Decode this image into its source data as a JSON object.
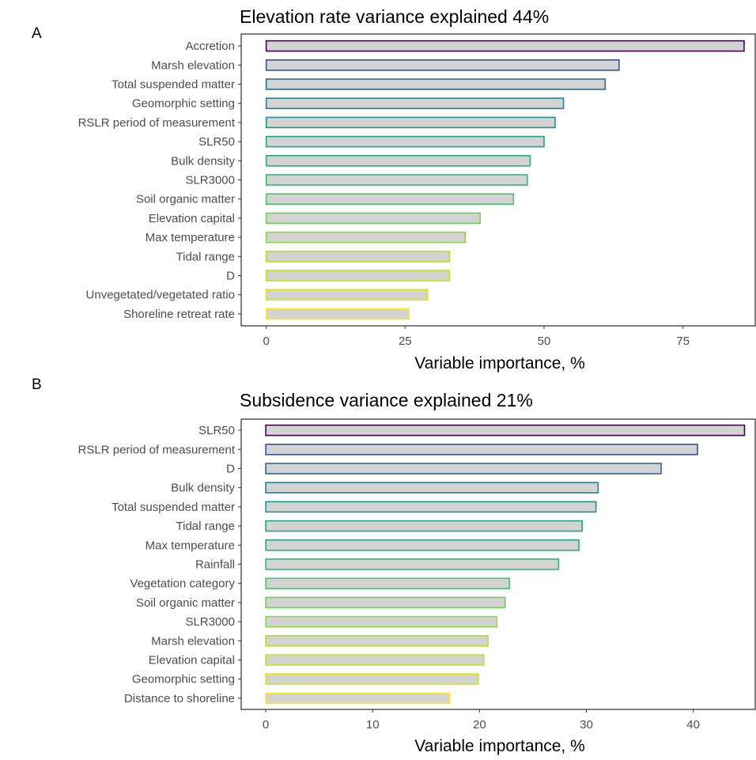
{
  "chart_data": [
    {
      "type": "bar",
      "orientation": "horizontal",
      "panel_label": "A",
      "title": "Elevation rate variance explained 44%",
      "xlabel": "Variable importance, %",
      "ylabel": "",
      "xlim": [
        -4.5,
        88
      ],
      "xticks": [
        0,
        25,
        50,
        75
      ],
      "tick_labels": [
        "0",
        "25",
        "50",
        "75"
      ],
      "grid": false,
      "legend": "none",
      "categories": [
        "Accretion",
        "Marsh elevation",
        "Total suspended matter",
        "Geomorphic setting",
        "RSLR period of measurement",
        "SLR50",
        "Bulk density",
        "SLR3000",
        "Soil organic matter",
        "Elevation capital",
        "Max temperature",
        "Tidal range",
        "D",
        "Unvegetated/vegetated ratio",
        "Shoreline retreat rate"
      ],
      "values": [
        86,
        63.5,
        61,
        53.5,
        52,
        50,
        47.5,
        47,
        44.5,
        38.5,
        35.8,
        33,
        33,
        29,
        25.7
      ],
      "colors": [
        "#440154",
        "#3b528b",
        "#31688e",
        "#2c7f8e",
        "#21918c",
        "#20a486",
        "#26ad81",
        "#35b779",
        "#4ec36b",
        "#6ece58",
        "#8fd744",
        "#b5de2b",
        "#c8e020",
        "#dde318",
        "#fde725"
      ],
      "fill": "#d3d3d3"
    },
    {
      "type": "bar",
      "orientation": "horizontal",
      "panel_label": "B",
      "title": "Subsidence variance explained 21%",
      "xlabel": "Variable importance, %",
      "ylabel": "",
      "xlim": [
        -2.3,
        45.8
      ],
      "xticks": [
        0,
        10,
        20,
        30,
        40
      ],
      "tick_labels": [
        "0",
        "10",
        "20",
        "30",
        "40"
      ],
      "grid": false,
      "legend": "none",
      "categories": [
        "SLR50",
        "RSLR period of measurement",
        "D",
        "Bulk density",
        "Total suspended matter",
        "Tidal range",
        "Max temperature",
        "Rainfall",
        "Vegetation category",
        "Soil organic matter",
        "SLR3000",
        "Marsh elevation",
        "Elevation capital",
        "Geomorphic setting",
        "Distance to shoreline"
      ],
      "values": [
        44.8,
        40.4,
        37,
        31.1,
        30.9,
        29.6,
        29.3,
        27.4,
        22.8,
        22.4,
        21.6,
        20.8,
        20.4,
        19.9,
        17.2
      ],
      "colors": [
        "#440154",
        "#3b528b",
        "#31688e",
        "#2c7f8e",
        "#21918c",
        "#20a486",
        "#26ad81",
        "#35b779",
        "#4ec36b",
        "#6ece58",
        "#8fd744",
        "#b5de2b",
        "#c8e020",
        "#dde318",
        "#fde725"
      ],
      "fill": "#d3d3d3"
    }
  ]
}
